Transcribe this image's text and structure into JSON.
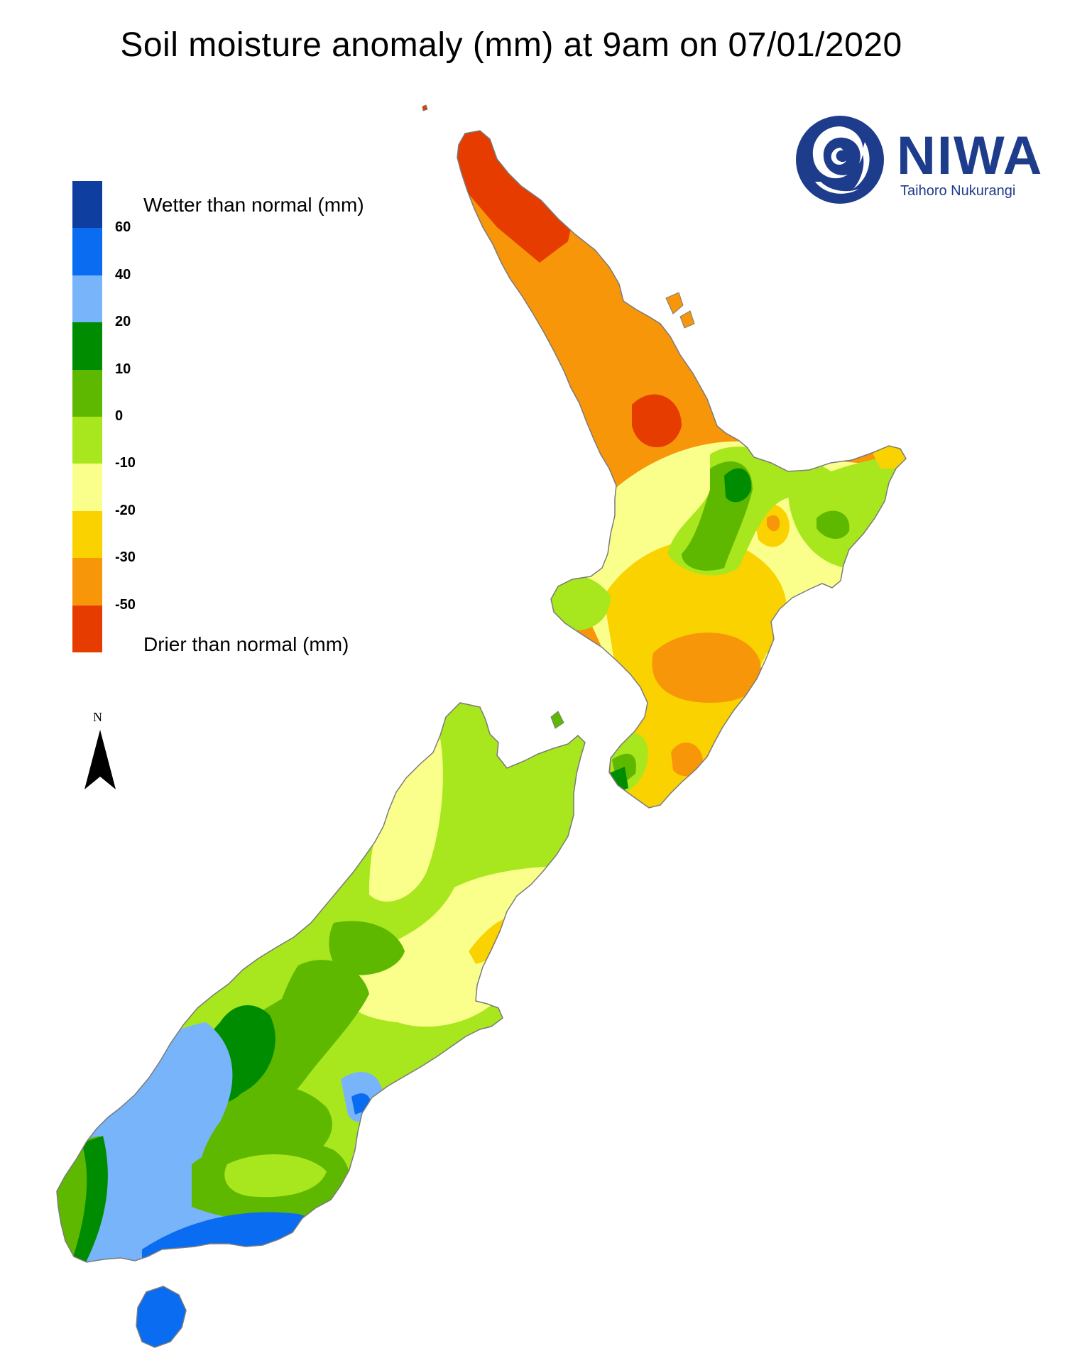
{
  "title": "Soil moisture anomaly (mm) at 9am on 07/01/2020",
  "logo": {
    "name": "NIWA",
    "subtitle": "Taihoro Nukurangi",
    "color": "#1e3c8c"
  },
  "legend": {
    "wetter_label": "Wetter than normal (mm)",
    "drier_label": "Drier than normal (mm)",
    "colors": [
      "#0d3ea0",
      "#0a6cf0",
      "#78b4fa",
      "#008c00",
      "#5fb800",
      "#a8e61e",
      "#faff8c",
      "#fad200",
      "#f8960a",
      "#e63c00"
    ],
    "ticks": [
      "60",
      "40",
      "20",
      "10",
      "0",
      "-10",
      "-20",
      "-30",
      "-50"
    ]
  },
  "north_arrow": {
    "label": "N"
  }
}
